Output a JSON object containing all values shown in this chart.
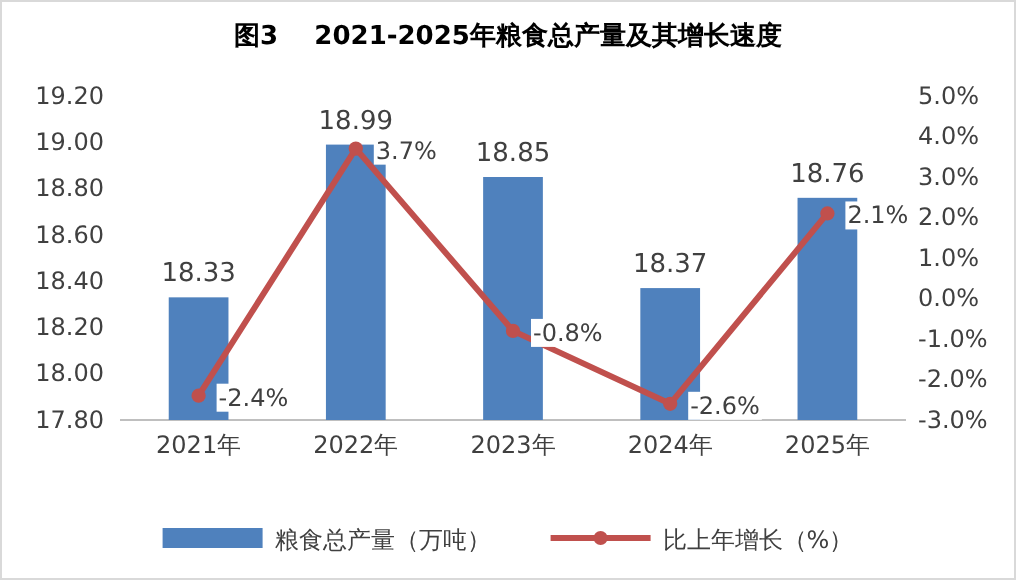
{
  "chart_data": {
    "type": "bar",
    "title": "图3    2021-2025年粮食总产量及其增长速度",
    "categories": [
      "2021年",
      "2022年",
      "2023年",
      "2024年",
      "2025年"
    ],
    "series": [
      {
        "name": "粮食总产量（万吨）",
        "color": "#4f81bd",
        "values": [
          18.33,
          18.99,
          18.85,
          18.37,
          18.76
        ],
        "value_labels": [
          "18.33",
          "18.99",
          "18.85",
          "18.37",
          "18.76"
        ]
      },
      {
        "name": "比上年增长（%）",
        "type": "line",
        "axis": "y2",
        "color": "#c0504d",
        "values": [
          -2.4,
          3.7,
          -0.8,
          -2.6,
          2.1
        ],
        "value_labels": [
          "-2.4%",
          "3.7%",
          "-0.8%",
          "-2.6%",
          "2.1%"
        ]
      }
    ],
    "ylim": [
      17.8,
      19.2
    ],
    "yticks": [
      {
        "value": 17.8,
        "label": "17.80"
      },
      {
        "value": 18,
        "label": "18.00"
      },
      {
        "value": 18.2,
        "label": "18.20"
      },
      {
        "value": 18.4,
        "label": "18.40"
      },
      {
        "value": 18.6,
        "label": "18.60"
      },
      {
        "value": 18.8,
        "label": "18.80"
      },
      {
        "value": 19,
        "label": "19.00"
      },
      {
        "value": 19.2,
        "label": "19.20"
      }
    ],
    "y2lim": [
      -3,
      5
    ],
    "y2ticks": [
      {
        "value": -3,
        "label": "-3.0%"
      },
      {
        "value": -2,
        "label": "-2.0%"
      },
      {
        "value": -1,
        "label": "-1.0%"
      },
      {
        "value": 0,
        "label": "0.0%"
      },
      {
        "value": 1,
        "label": "1.0%"
      },
      {
        "value": 2,
        "label": "2.0%"
      },
      {
        "value": 3,
        "label": "3.0%"
      },
      {
        "value": 4,
        "label": "4.0%"
      },
      {
        "value": 5,
        "label": "5.0%"
      }
    ],
    "legend": "bottom",
    "marker": "circle",
    "grid": false
  }
}
